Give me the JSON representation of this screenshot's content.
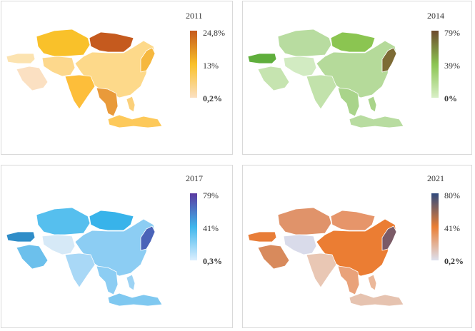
{
  "panels": [
    {
      "title": "2011",
      "legend_labels": [
        "24,8%",
        "13%",
        "0,2%"
      ],
      "legend_colors": [
        "#c55a1e",
        "#f9c12a",
        "#fbe0c2"
      ],
      "region_colors": [
        "#f9c12a",
        "#c55a1e",
        "#fdd98a",
        "#fce3b0",
        "#fbe0c2",
        "#fdd88c",
        "#fdbe3a",
        "#e99a3a",
        "#f6b83f",
        "#fdc95a",
        "#fbd07a"
      ]
    },
    {
      "title": "2014",
      "legend_labels": [
        "79%",
        "39%",
        "0%"
      ],
      "legend_colors": [
        "#6e4a2c",
        "#8bc551",
        "#d8efc6"
      ],
      "region_colors": [
        "#b8dca0",
        "#8bc551",
        "#b5da9a",
        "#5fae3c",
        "#c6e4b0",
        "#d2ebc2",
        "#c2e2ab",
        "#a9d48a",
        "#7d6b35",
        "#b8dca0",
        "#a9d48a"
      ]
    },
    {
      "title": "2017",
      "legend_labels": [
        "79%",
        "41%",
        "0,3%"
      ],
      "legend_colors": [
        "#5b3aa0",
        "#3fb6ec",
        "#dcefff"
      ],
      "region_colors": [
        "#56bfee",
        "#38b3ea",
        "#8ccdf3",
        "#2f8dc8",
        "#6cc0ec",
        "#d6e9f7",
        "#a9d8f6",
        "#8ccdf3",
        "#4a63b8",
        "#7fc8f0",
        "#9dd3f4"
      ]
    },
    {
      "title": "2021",
      "legend_labels": [
        "80%",
        "41%",
        "0,2%"
      ],
      "legend_colors": [
        "#2f4a7e",
        "#ea7f35",
        "#dde0ee"
      ],
      "region_colors": [
        "#e0936a",
        "#e6956a",
        "#eb7d33",
        "#e87d38",
        "#d88a5c",
        "#d9dbea",
        "#e9c7b4",
        "#e9a27a",
        "#7b5b67",
        "#e6c3b0",
        "#ebb89a"
      ]
    }
  ]
}
